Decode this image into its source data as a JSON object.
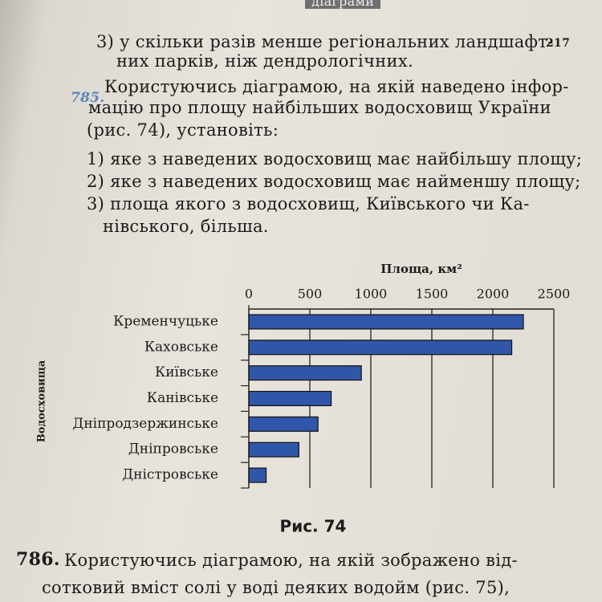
{
  "header": {
    "section": "діаграми",
    "page_number": "217"
  },
  "previous_item": {
    "lines": [
      "3) у скільки разів менше регіональних ландшафт-",
      "них парків, ніж дендрологічних."
    ]
  },
  "exercise_785": {
    "number": "785.",
    "lines": [
      "Користуючись діаграмою, на якій наведено інфор-",
      "мацію про площу найбільших водосховищ України",
      "(рис. 74), установіть:",
      "1) яке з наведених водосховищ має найбільшу площу;",
      "2) яке з наведених водосховищ має найменшу площу;",
      "3) площа якого з водосховищ, Київського чи Ка-",
      "нівського, більша."
    ]
  },
  "chart_data": {
    "type": "bar",
    "orientation": "horizontal",
    "x_label": "Площа, км²",
    "y_label": "Водосховища",
    "caption": "Рис. 74",
    "categories": [
      "Кременчуцьке",
      "Каховське",
      "Київське",
      "Канівське",
      "Дніпродзержинське",
      "Дніпровське",
      "Дністровське"
    ],
    "values": [
      2250,
      2155,
      922,
      675,
      567,
      410,
      142
    ],
    "color": "#2f56a8",
    "xlim": [
      0,
      2500
    ],
    "xticks": [
      0,
      500,
      1000,
      1500,
      2000,
      2500
    ],
    "grid": true
  },
  "exercise_786": {
    "number": "786.",
    "lines": [
      "Користуючись діаграмою, на якій зображено від-",
      "сотковий вміст солі у воді деяких водойм (рис. 75),"
    ]
  }
}
